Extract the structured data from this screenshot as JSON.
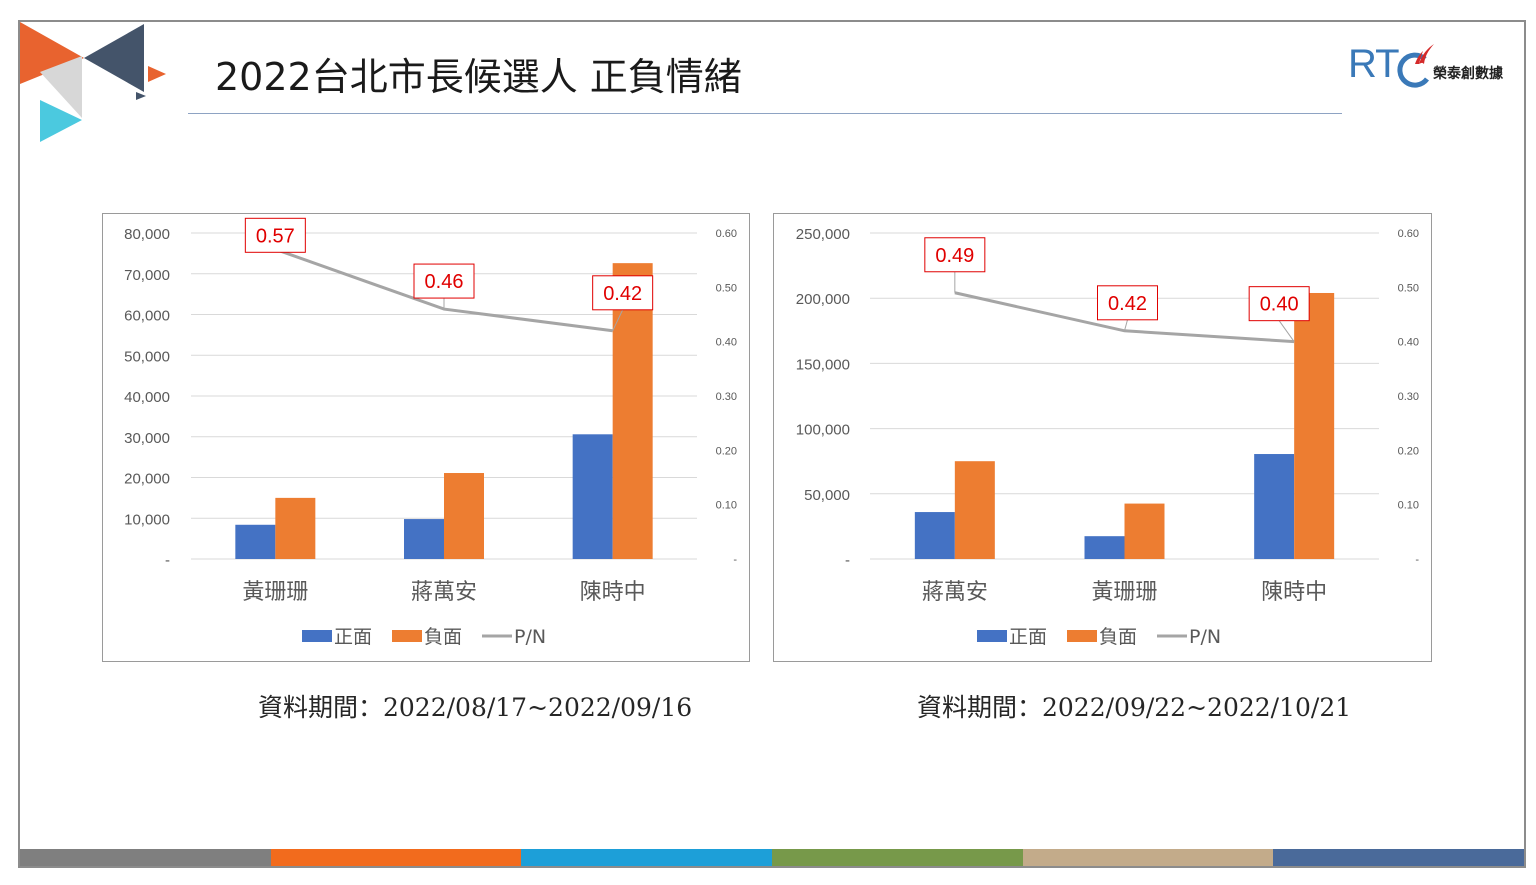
{
  "title": "2022台北市長候選人 正負情緒",
  "logo": {
    "brand": "RTC",
    "name": "榮泰創數據"
  },
  "charts": [
    {
      "caption": "資料期間：2022/08/17~2022/09/16"
    },
    {
      "caption": "資料期間：2022/09/22~2022/10/21"
    }
  ],
  "chart_data": [
    {
      "type": "bar",
      "combo": "bar+line (P/N on secondary axis)",
      "categories": [
        "黃珊珊",
        "蔣萬安",
        "陳時中"
      ],
      "series": [
        {
          "name": "正面",
          "type": "bar",
          "axis": "primary",
          "color": "#4472c4",
          "values": [
            8400,
            9800,
            30600
          ]
        },
        {
          "name": "負面",
          "type": "bar",
          "axis": "primary",
          "color": "#ed7d31",
          "values": [
            15000,
            21100,
            72600
          ]
        },
        {
          "name": "P/N",
          "type": "line",
          "axis": "secondary",
          "color": "#a5a5a5",
          "values": [
            0.57,
            0.46,
            0.42
          ],
          "labels": [
            "0.57",
            "0.46",
            "0.42"
          ]
        }
      ],
      "ylim": [
        0,
        80000
      ],
      "yticks": [
        "-",
        "10,000",
        "20,000",
        "30,000",
        "40,000",
        "50,000",
        "60,000",
        "70,000",
        "80,000"
      ],
      "y2lim": [
        0,
        0.6
      ],
      "y2ticks": [
        "-",
        "0.10",
        "0.20",
        "0.30",
        "0.40",
        "0.50",
        "0.60"
      ],
      "grid": true,
      "legend": "bottom"
    },
    {
      "type": "bar",
      "combo": "bar+line (P/N on secondary axis)",
      "categories": [
        "蔣萬安",
        "黃珊珊",
        "陳時中"
      ],
      "series": [
        {
          "name": "正面",
          "type": "bar",
          "axis": "primary",
          "color": "#4472c4",
          "values": [
            36000,
            17500,
            80500
          ]
        },
        {
          "name": "負面",
          "type": "bar",
          "axis": "primary",
          "color": "#ed7d31",
          "values": [
            75000,
            42500,
            204000
          ]
        },
        {
          "name": "P/N",
          "type": "line",
          "axis": "secondary",
          "color": "#a5a5a5",
          "values": [
            0.49,
            0.42,
            0.4
          ],
          "labels": [
            "0.49",
            "0.42",
            "0.40"
          ]
        }
      ],
      "ylim": [
        0,
        250000
      ],
      "yticks": [
        "-",
        "50,000",
        "100,000",
        "150,000",
        "200,000",
        "250,000"
      ],
      "y2lim": [
        0,
        0.6
      ],
      "y2ticks": [
        "-",
        "0.10",
        "0.20",
        "0.30",
        "0.40",
        "0.50",
        "0.60"
      ],
      "grid": true,
      "legend": "bottom"
    }
  ],
  "bottom_bar_colors": [
    "#7f7f7f",
    "#f26b1d",
    "#1d9fd8",
    "#77994a",
    "#c3ab8a",
    "#4a6a9a"
  ]
}
